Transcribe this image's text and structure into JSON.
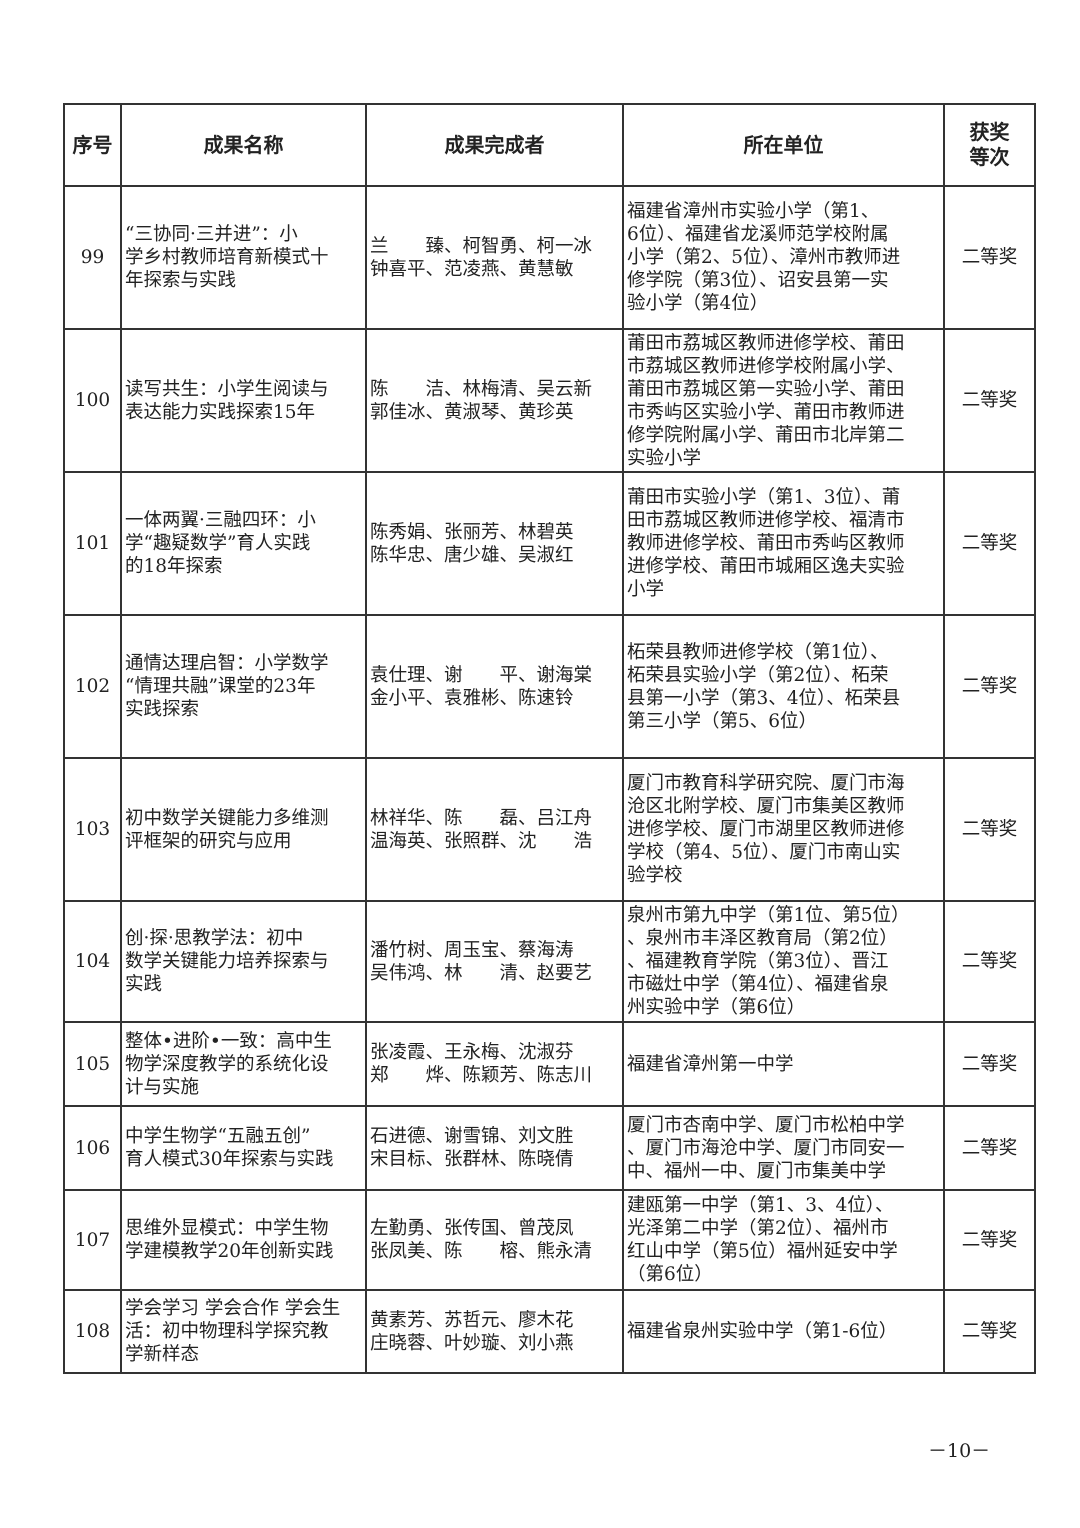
{
  "headers": [
    "序号",
    "成果名称",
    "成果完成者",
    "所在单位",
    "获奖\n等次"
  ],
  "rows": [
    {
      "no": "99",
      "title": "“三协同·三并进”：小\n学乡村教师培育新模式十\n年探索与实践",
      "authors": "兰　　臻、柯智勇、柯一冰\n钟喜平、范凌燕、黄慧敏",
      "unit": "福建省漳州市实验小学（第1、\n6位）、福建省龙溪师范学校附属\n小学（第2、5位）、漳州市教师进\n修学院（第3位）、诏安县第一实\n验小学（第4位）",
      "award": "二等奖"
    },
    {
      "no": "100",
      "title": "读写共生：小学生阅读与\n表达能力实践探索15年",
      "authors": "陈　　洁、林梅清、吴云新\n郭佳冰、黄淑琴、黄珍英",
      "unit": "莆田市荔城区教师进修学校、莆田\n市荔城区教师进修学校附属小学、\n莆田市荔城区第一实验小学、莆田\n市秀屿区实验小学、莆田市教师进\n修学院附属小学、莆田市北岸第二\n实验小学",
      "award": "二等奖"
    },
    {
      "no": "101",
      "title": "一体两翼·三融四环：小\n学“趣疑数学”育人实践\n的18年探索",
      "authors": "陈秀娟、张丽芳、林碧英\n陈华忠、唐少雄、吴淑红",
      "unit": "莆田市实验小学（第1、3位）、莆\n田市荔城区教师进修学校、福清市\n教师进修学校、莆田市秀屿区教师\n进修学校、莆田市城厢区逸夫实验\n小学",
      "award": "二等奖"
    },
    {
      "no": "102",
      "title": "通情达理启智：小学数学\n“情理共融”课堂的23年\n实践探索",
      "authors": "袁仕理、谢　　平、谢海棠\n金小平、袁雅彬、陈速铃",
      "unit": "柘荣县教师进修学校（第1位）、\n柘荣县实验小学（第2位）、柘荣\n县第一小学（第3、4位）、柘荣县\n第三小学（第5、6位）",
      "award": "二等奖"
    },
    {
      "no": "103",
      "title": "初中数学关键能力多维测\n评框架的研究与应用",
      "authors": "林祥华、陈　　磊、吕江舟\n温海英、张照群、沈　　浩",
      "unit": "厦门市教育科学研究院、厦门市海\n沧区北附学校、厦门市集美区教师\n进修学校、厦门市湖里区教师进修\n学校（第4、5位）、厦门市南山实\n验学校",
      "award": "二等奖"
    },
    {
      "no": "104",
      "title": "创·探·思教学法：初中\n数学关键能力培养探索与\n实践",
      "authors": "潘竹树、周玉宝、蔡海涛\n吴伟鸿、林　　清、赵要艺",
      "unit": "泉州市第九中学（第1位、第5位）\n、泉州市丰泽区教育局（第2位）\n、福建教育学院（第3位）、晋江\n市磁灶中学（第4位）、福建省泉\n州实验中学（第6位）",
      "award": "二等奖"
    },
    {
      "no": "105",
      "title": "整体•进阶•一致：高中生\n物学深度教学的系统化设\n计与实施",
      "authors": "张凌霞、王永梅、沈淑芬\n郑　　烨、陈颖芳、陈志川",
      "unit": "福建省漳州第一中学",
      "award": "二等奖"
    },
    {
      "no": "106",
      "title": "中学生物学“五融五创”\n育人模式30年探索与实践",
      "authors": "石进德、谢雪锦、刘文胜\n宋目标、张群林、陈晓倩",
      "unit": "厦门市杏南中学、厦门市松柏中学\n、厦门市海沧中学、厦门市同安一\n中、福州一中、厦门市集美中学",
      "award": "二等奖"
    },
    {
      "no": "107",
      "title": "思维外显模式：中学生物\n学建模教学20年创新实践",
      "authors": "左勤勇、张传国、曾茂凤\n张凤美、陈　　榕、熊永清",
      "unit": "建瓯第一中学（第1、3、4位）、\n光泽第二中学（第2位）、福州市\n红山中学（第5位）福州延安中学\n（第6位）",
      "award": "二等奖"
    },
    {
      "no": "108",
      "title": "学会学习 学会合作 学会生\n活：初中物理科学探究教\n学新样态",
      "authors": "黄素芳、苏哲元、廖木花\n庄晓蓉、叶妙璇、刘小燕",
      "unit": "福建省泉州实验中学（第1-6位）",
      "award": "二等奖"
    }
  ],
  "page_number": "－10－"
}
